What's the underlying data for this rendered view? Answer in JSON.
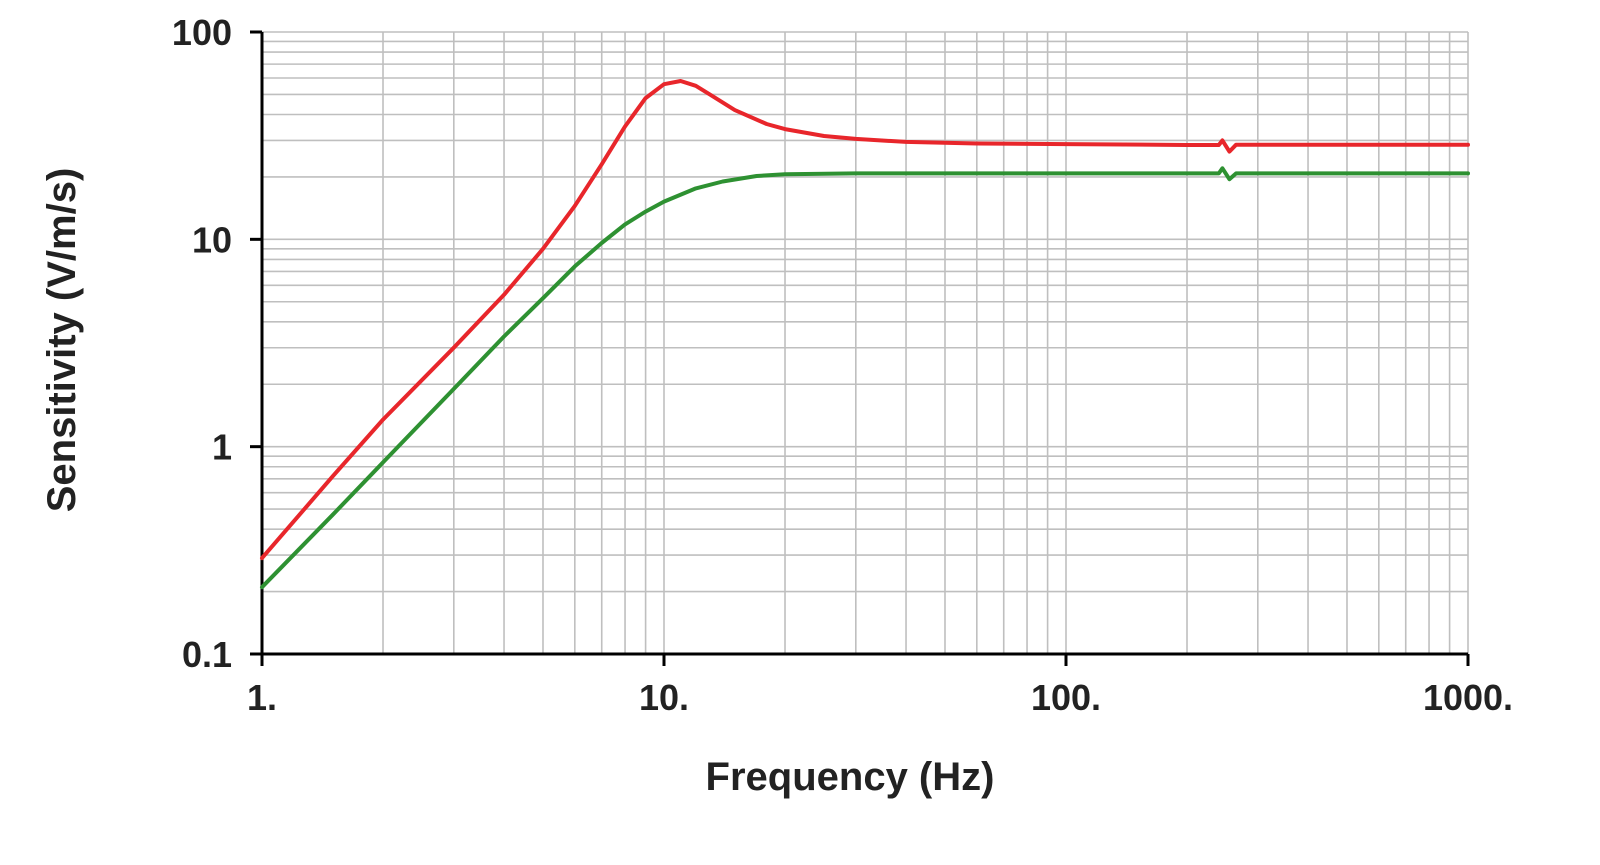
{
  "chart_data": {
    "type": "line",
    "title": "",
    "xlabel": "Frequency (Hz)",
    "ylabel": "Sensitivity (V/m/s)",
    "x_scale": "log",
    "y_scale": "log",
    "xlim": [
      1,
      1000
    ],
    "ylim": [
      0.1,
      100
    ],
    "grid": true,
    "x_ticks": [
      {
        "value": 1,
        "label": "1."
      },
      {
        "value": 10,
        "label": "10."
      },
      {
        "value": 100,
        "label": "100."
      },
      {
        "value": 1000,
        "label": "1000."
      }
    ],
    "y_ticks": [
      {
        "value": 0.1,
        "label": "0.1"
      },
      {
        "value": 1,
        "label": "1"
      },
      {
        "value": 10,
        "label": "10"
      },
      {
        "value": 100,
        "label": "100"
      }
    ],
    "series": [
      {
        "color": "#e8262b",
        "points": [
          [
            1,
            0.29
          ],
          [
            1.5,
            0.72
          ],
          [
            2,
            1.35
          ],
          [
            3,
            3.0
          ],
          [
            4,
            5.4
          ],
          [
            5,
            9.0
          ],
          [
            6,
            14.5
          ],
          [
            7,
            23.0
          ],
          [
            8,
            35.0
          ],
          [
            9,
            48.0
          ],
          [
            10,
            56.0
          ],
          [
            11,
            58.0
          ],
          [
            12,
            55.0
          ],
          [
            13,
            50.0
          ],
          [
            15,
            42.0
          ],
          [
            18,
            36.0
          ],
          [
            20,
            34.0
          ],
          [
            25,
            31.5
          ],
          [
            30,
            30.5
          ],
          [
            40,
            29.5
          ],
          [
            60,
            29.0
          ],
          [
            100,
            28.8
          ],
          [
            200,
            28.5
          ],
          [
            240,
            28.5
          ],
          [
            245,
            30.0
          ],
          [
            255,
            26.5
          ],
          [
            265,
            28.6
          ],
          [
            300,
            28.6
          ],
          [
            500,
            28.6
          ],
          [
            1000,
            28.6
          ]
        ]
      },
      {
        "color": "#2e9132",
        "points": [
          [
            1,
            0.21
          ],
          [
            1.5,
            0.47
          ],
          [
            2,
            0.84
          ],
          [
            3,
            1.9
          ],
          [
            4,
            3.4
          ],
          [
            5,
            5.2
          ],
          [
            6,
            7.4
          ],
          [
            7,
            9.6
          ],
          [
            8,
            11.8
          ],
          [
            9,
            13.6
          ],
          [
            10,
            15.2
          ],
          [
            12,
            17.6
          ],
          [
            14,
            19.0
          ],
          [
            17,
            20.2
          ],
          [
            20,
            20.6
          ],
          [
            30,
            20.8
          ],
          [
            50,
            20.8
          ],
          [
            100,
            20.8
          ],
          [
            200,
            20.8
          ],
          [
            240,
            20.8
          ],
          [
            245,
            22.0
          ],
          [
            255,
            19.5
          ],
          [
            265,
            20.8
          ],
          [
            300,
            20.8
          ],
          [
            500,
            20.8
          ],
          [
            1000,
            20.8
          ]
        ]
      }
    ]
  }
}
